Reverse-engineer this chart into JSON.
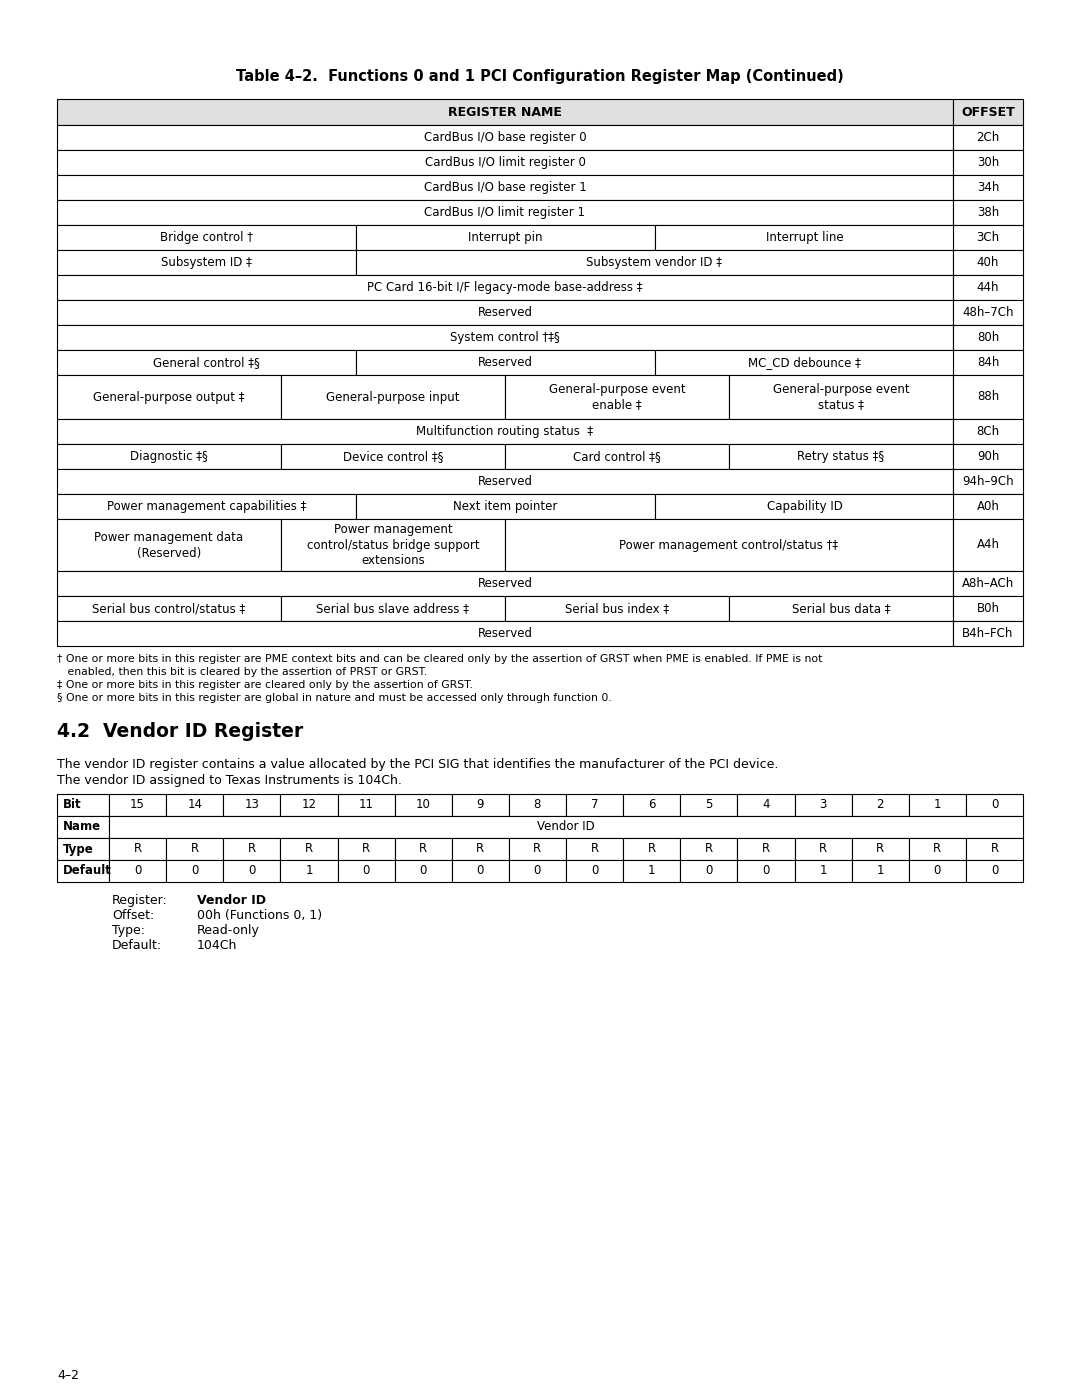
{
  "title": "Table 4–2.  Functions 0 and 1 PCI Configuration Register Map (Continued)",
  "footnotes": [
    "† One or more bits in this register are PME context bits and can be cleared only by the assertion of GRST when PME is enabled. If PME is not",
    "   enabled, then this bit is cleared by the assertion of PRST or GRST.",
    "‡ One or more bits in this register are cleared only by the assertion of GRST.",
    "§ One or more bits in this register are global in nature and must be accessed only through function 0."
  ],
  "section_title": "4.2  Vendor ID Register",
  "section_text_line1": "The vendor ID register contains a value allocated by the PCI SIG that identifies the manufacturer of the PCI device.",
  "section_text_line2": "The vendor ID assigned to Texas Instruments is 104Ch.",
  "vendor_bit_header": [
    "Bit",
    "15",
    "14",
    "13",
    "12",
    "11",
    "10",
    "9",
    "8",
    "7",
    "6",
    "5",
    "4",
    "3",
    "2",
    "1",
    "0"
  ],
  "vendor_name_row": [
    "Name",
    "Vendor ID"
  ],
  "vendor_type_row": [
    "Type",
    "R",
    "R",
    "R",
    "R",
    "R",
    "R",
    "R",
    "R",
    "R",
    "R",
    "R",
    "R",
    "R",
    "R",
    "R",
    "R"
  ],
  "vendor_default_row": [
    "Default",
    "0",
    "0",
    "0",
    "1",
    "0",
    "0",
    "0",
    "0",
    "0",
    "1",
    "0",
    "0",
    "1",
    "1",
    "0",
    "0"
  ],
  "register_info": [
    [
      "Register:",
      "Vendor ID",
      true
    ],
    [
      "Offset:",
      "00h (Functions 0, 1)",
      false
    ],
    [
      "Type:",
      "Read-only",
      false
    ],
    [
      "Default:",
      "104Ch",
      false
    ]
  ],
  "page_number": "4–2",
  "bg_color": "#ffffff"
}
